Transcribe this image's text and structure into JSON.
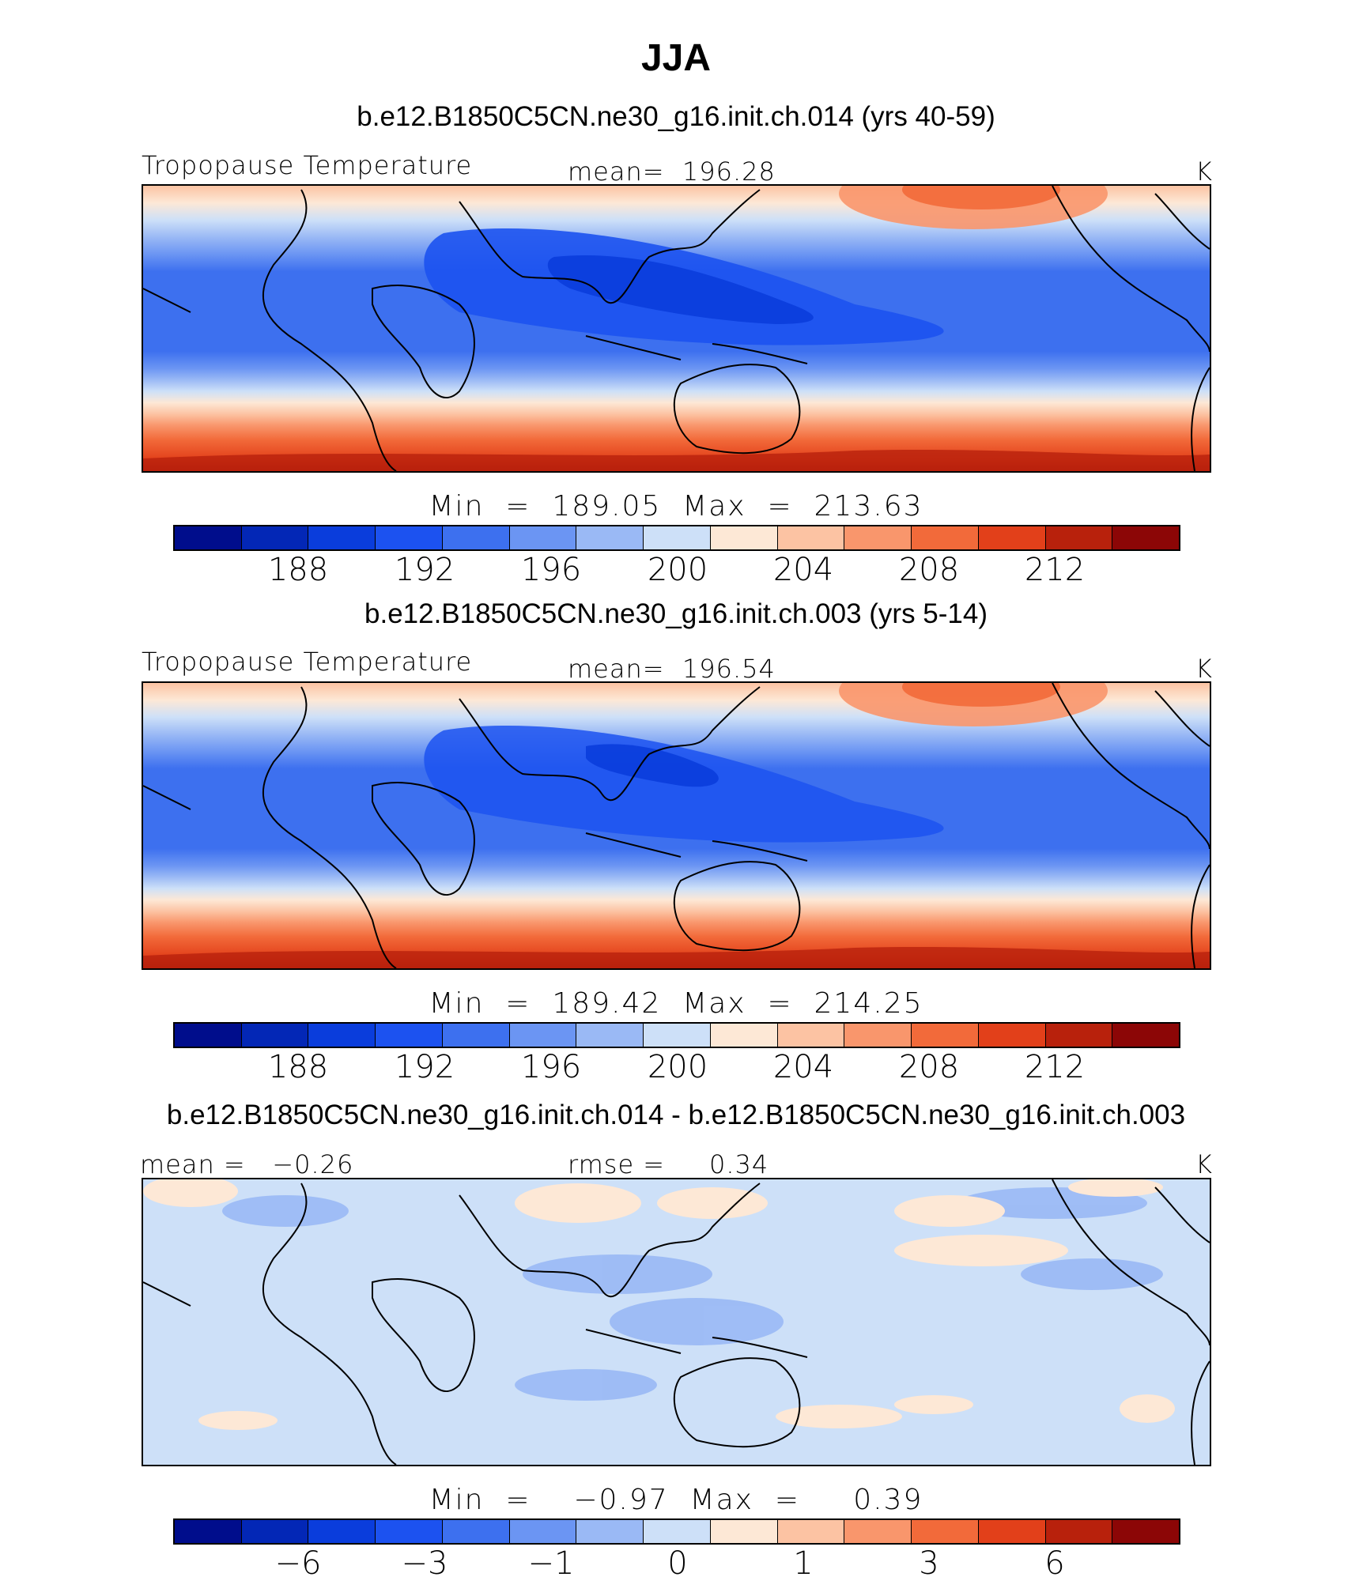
{
  "title": "JJA",
  "panels": [
    {
      "case": "b.e12.B1850C5CN.ne30_g16.init.ch.014 (yrs 40-59)",
      "field": "Tropopause Temperature",
      "mean_label": "mean=  196.28",
      "units": "K",
      "minmax": "Min  =  189.05  Max  =  213.63",
      "stats": {
        "min": 189.05,
        "max": 213.63,
        "mean": 196.28
      }
    },
    {
      "case": "b.e12.B1850C5CN.ne30_g16.init.ch.003 (yrs 5-14)",
      "field": "Tropopause Temperature",
      "mean_label": "mean=  196.54",
      "units": "K",
      "minmax": "Min  =  189.42  Max  =  214.25",
      "stats": {
        "min": 189.42,
        "max": 214.25,
        "mean": 196.54
      }
    },
    {
      "case": "b.e12.B1850C5CN.ne30_g16.init.ch.014 - b.e12.B1850C5CN.ne30_g16.init.ch.003",
      "field": "mean =   −0.26",
      "mean_label": "rmse =     0.34",
      "units": "K",
      "minmax": "Min  =    −0.97  Max  =     0.39",
      "stats": {
        "min": -0.97,
        "max": 0.39,
        "mean": -0.26,
        "rmse": 0.34
      }
    }
  ],
  "colorbars": {
    "colors": [
      "#000d8c",
      "#0327b6",
      "#0a3ddc",
      "#1c52f0",
      "#3d70ef",
      "#6b95f3",
      "#9ab9f5",
      "#cde0f8",
      "#fde8d6",
      "#fcc3a3",
      "#f9966c",
      "#f26a3a",
      "#e2401a",
      "#b8210c",
      "#8c0606"
    ],
    "absolute_ticks": [
      "188",
      "192",
      "196",
      "200",
      "204",
      "208",
      "212"
    ],
    "difference_ticks": [
      "−6",
      "−3",
      "−1",
      "0",
      "1",
      "3",
      "6"
    ]
  },
  "chart_data": {
    "type": "heatmap",
    "season": "JJA",
    "variable": "Tropopause Temperature",
    "units": "K",
    "absolute_levels": [
      186,
      188,
      190,
      192,
      194,
      196,
      198,
      200,
      202,
      204,
      206,
      208,
      210,
      212
    ],
    "difference_levels": [
      -8,
      -6,
      -4,
      -3,
      -2,
      -1,
      -0.5,
      0,
      0.5,
      1,
      2,
      3,
      4,
      6
    ],
    "panels": [
      {
        "case": "b.e12.B1850C5CN.ne30_g16.init.ch.014 (yrs 40-59)",
        "min": 189.05,
        "max": 213.63,
        "mean": 196.28
      },
      {
        "case": "b.e12.B1850C5CN.ne30_g16.init.ch.003 (yrs 5-14)",
        "min": 189.42,
        "max": 214.25,
        "mean": 196.54
      },
      {
        "case": "b.e12.B1850C5CN.ne30_g16.init.ch.014 - b.e12.B1850C5CN.ne30_g16.init.ch.003",
        "min": -0.97,
        "max": 0.39,
        "mean": -0.26,
        "rmse": 0.34
      }
    ]
  }
}
